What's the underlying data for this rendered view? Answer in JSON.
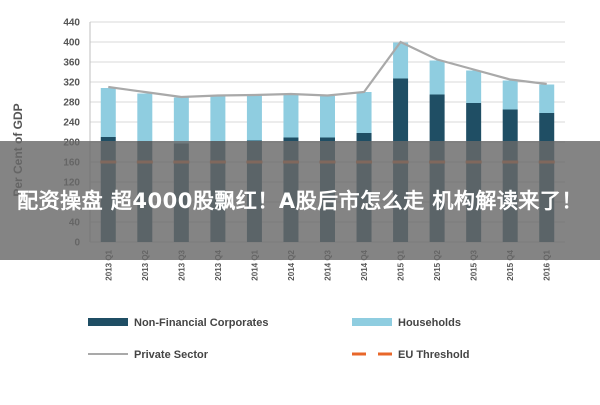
{
  "headline": "配资操盘 超4000股飘红！A股后市怎么走 机构解读来了！",
  "colors": {
    "non_financial": "#1f4e64",
    "households": "#8fcde0",
    "private_sector": "#a9a9a9",
    "eu_threshold": "#e8672a",
    "grid": "#d9d9d9",
    "overlay": "#696969"
  },
  "chart_data": {
    "type": "bar",
    "stacked": true,
    "ylabel": "Per Cent of GDP",
    "ylim": [
      0,
      440
    ],
    "yticks": [
      0,
      40,
      80,
      120,
      160,
      200,
      240,
      280,
      320,
      360,
      400,
      440
    ],
    "grid": true,
    "legend_position": "bottom",
    "categories": [
      "2013 Q1",
      "2013 Q2",
      "2013 Q3",
      "2013 Q4",
      "2014 Q1",
      "2014 Q2",
      "2014 Q3",
      "2014 Q4",
      "2015 Q1",
      "2015 Q2",
      "2015 Q3",
      "2015 Q4",
      "2016 Q1"
    ],
    "series": [
      {
        "name": "Non-Financial Corporates",
        "kind": "bar",
        "values": [
          210,
          202,
          197,
          202,
          203,
          209,
          209,
          218,
          327,
          295,
          278,
          265,
          258
        ]
      },
      {
        "name": "Households",
        "kind": "bar",
        "values": [
          98,
          95,
          92,
          90,
          90,
          86,
          83,
          82,
          72,
          68,
          65,
          58,
          57
        ]
      },
      {
        "name": "Private Sector",
        "kind": "line",
        "values": [
          310,
          300,
          290,
          293,
          294,
          296,
          293,
          300,
          400,
          365,
          345,
          325,
          316
        ]
      },
      {
        "name": "EU Threshold",
        "kind": "dashed-line",
        "values": [
          160,
          160,
          160,
          160,
          160,
          160,
          160,
          160,
          160,
          160,
          160,
          160,
          160
        ]
      }
    ]
  }
}
